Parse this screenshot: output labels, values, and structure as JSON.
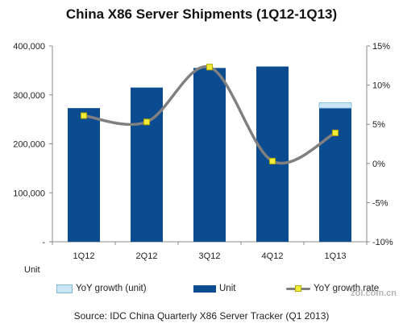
{
  "chart_data": {
    "type": "bar+line",
    "title": "China X86 Server Shipments (1Q12-1Q13)",
    "categories": [
      "1Q12",
      "2Q12",
      "3Q12",
      "4Q12",
      "1Q13"
    ],
    "unit_label": "Unit",
    "series": [
      {
        "name": "Unit",
        "type": "bar",
        "axis": "left",
        "color": "#0b4b8f",
        "values": [
          273000,
          315000,
          355000,
          358000,
          273000
        ]
      },
      {
        "name": "YoY growth (unit)",
        "type": "bar-stack",
        "axis": "left",
        "color": "#c9e6f6",
        "values": [
          0,
          0,
          0,
          0,
          11000
        ]
      },
      {
        "name": "YoY growth rate",
        "type": "line",
        "axis": "right",
        "color": "#808080",
        "marker_color": "#f2ec3b",
        "values": [
          6.1,
          5.3,
          12.3,
          0.3,
          3.9
        ]
      }
    ],
    "y_left": {
      "ylim": [
        0,
        400000
      ],
      "ticks": [
        "-",
        "100,000",
        "200,000",
        "300,000",
        "400,000"
      ]
    },
    "y_right": {
      "ylim": [
        -10,
        15
      ],
      "ticks": [
        "-10%",
        "-5%",
        "0%",
        "5%",
        "10%",
        "15%"
      ]
    },
    "grid": false,
    "legend_position": "bottom",
    "source": "Source: IDC China Quarterly X86 Server Tracker (Q1 2013)"
  },
  "watermark": "zol.com.cn"
}
